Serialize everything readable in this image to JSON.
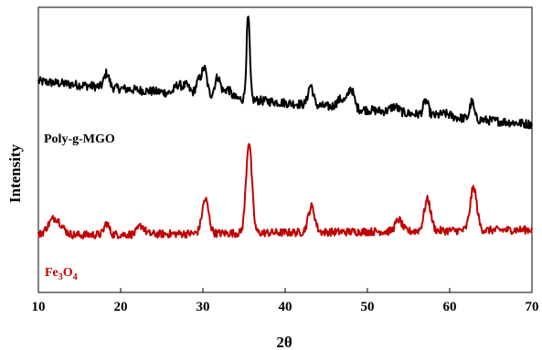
{
  "chart_data": {
    "type": "line",
    "xlabel": "2θ",
    "ylabel": "Intensity",
    "xlim": [
      10,
      70
    ],
    "ylim": [
      0,
      100
    ],
    "x_ticks": [
      10,
      20,
      30,
      40,
      50,
      60,
      70
    ],
    "y_ticks_shown": false,
    "grid": false,
    "legend": "none",
    "series": [
      {
        "name": "Poly-g-MGO",
        "name_parts": {
          "text": "Poly-g-MGO"
        },
        "color": "#000000",
        "baseline_start": 74,
        "baseline_end": 59,
        "noise": 1.6,
        "peaks": [
          {
            "x": 18.3,
            "height": 5,
            "width": 0.3
          },
          {
            "x": 27.0,
            "height": 3,
            "width": 0.4
          },
          {
            "x": 28.0,
            "height": 3,
            "width": 0.4
          },
          {
            "x": 29.5,
            "height": 5,
            "width": 0.35
          },
          {
            "x": 30.2,
            "height": 9,
            "width": 0.3
          },
          {
            "x": 31.8,
            "height": 7,
            "width": 0.35
          },
          {
            "x": 33.0,
            "height": 3,
            "width": 0.4
          },
          {
            "x": 35.5,
            "height": 29,
            "width": 0.2
          },
          {
            "x": 43.1,
            "height": 7,
            "width": 0.3
          },
          {
            "x": 46.8,
            "height": 3,
            "width": 0.5
          },
          {
            "x": 48.0,
            "height": 7,
            "width": 0.35
          },
          {
            "x": 53.3,
            "height": 2,
            "width": 0.5
          },
          {
            "x": 57.1,
            "height": 5,
            "width": 0.3
          },
          {
            "x": 59.5,
            "height": 1,
            "width": 0.6
          },
          {
            "x": 62.7,
            "height": 6,
            "width": 0.25
          }
        ]
      },
      {
        "name": "Fe3O4",
        "name_parts": {
          "main": "Fe",
          "sub1": "3",
          "mid": "O",
          "sub2": "4"
        },
        "color": "#c00000",
        "baseline_start": 20,
        "baseline_end": 22,
        "noise": 1.4,
        "peaks": [
          {
            "x": 12.0,
            "height": 6,
            "width": 0.8
          },
          {
            "x": 18.3,
            "height": 4,
            "width": 0.3
          },
          {
            "x": 22.5,
            "height": 3,
            "width": 0.4
          },
          {
            "x": 30.3,
            "height": 12,
            "width": 0.4
          },
          {
            "x": 35.6,
            "height": 32,
            "width": 0.35
          },
          {
            "x": 43.2,
            "height": 9,
            "width": 0.4
          },
          {
            "x": 53.8,
            "height": 4,
            "width": 0.4
          },
          {
            "x": 57.3,
            "height": 11,
            "width": 0.4
          },
          {
            "x": 62.9,
            "height": 15,
            "width": 0.4
          }
        ]
      }
    ]
  }
}
